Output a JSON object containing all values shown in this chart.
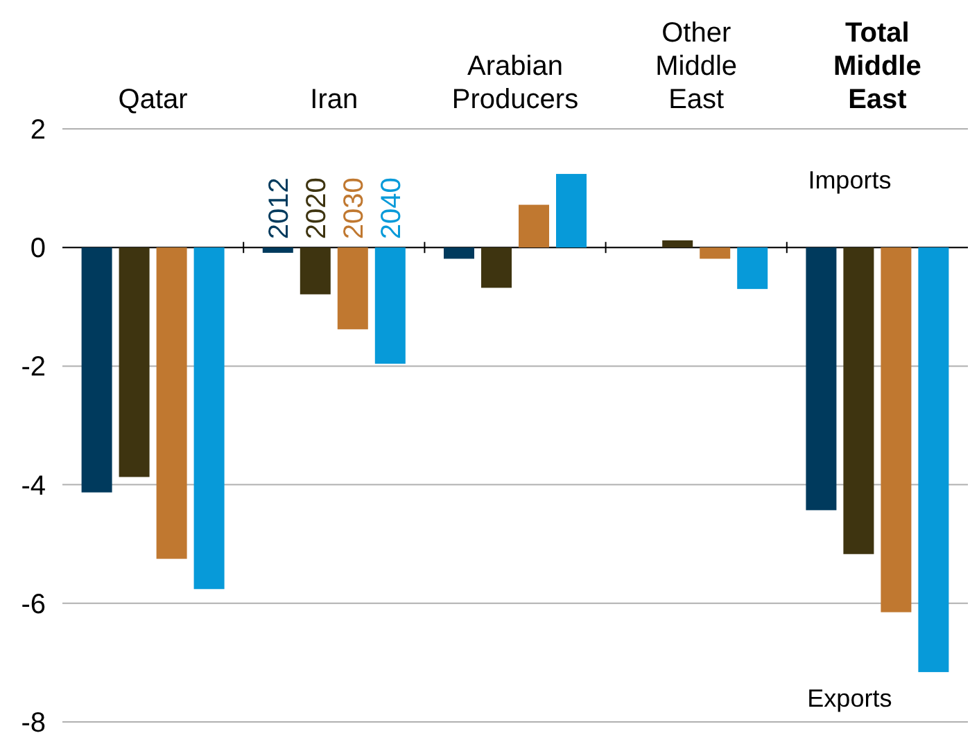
{
  "chart_data": {
    "type": "bar",
    "categories": [
      "Qatar",
      "Iran",
      "Arabian Producers",
      "Other Middle East",
      "Total Middle East"
    ],
    "series": [
      {
        "name": "2012",
        "color": "#003a5d",
        "values": [
          -4.13,
          -0.09,
          -0.19,
          0,
          -4.43
        ]
      },
      {
        "name": "2020",
        "color": "#3e3410",
        "values": [
          -3.87,
          -0.79,
          -0.68,
          0.12,
          -5.17
        ]
      },
      {
        "name": "2030",
        "color": "#c07830",
        "values": [
          -5.25,
          -1.38,
          0.72,
          -0.19,
          -6.15
        ]
      },
      {
        "name": "2040",
        "color": "#079ad9",
        "values": [
          -5.76,
          -1.96,
          1.24,
          -0.7,
          -7.16
        ]
      }
    ],
    "ylim": [
      -8,
      2
    ],
    "yticks": [
      -8,
      -6,
      -4,
      -2,
      0,
      2
    ],
    "grid": "y",
    "legend": "top left",
    "annotations": [
      "Imports",
      "Exports"
    ]
  }
}
